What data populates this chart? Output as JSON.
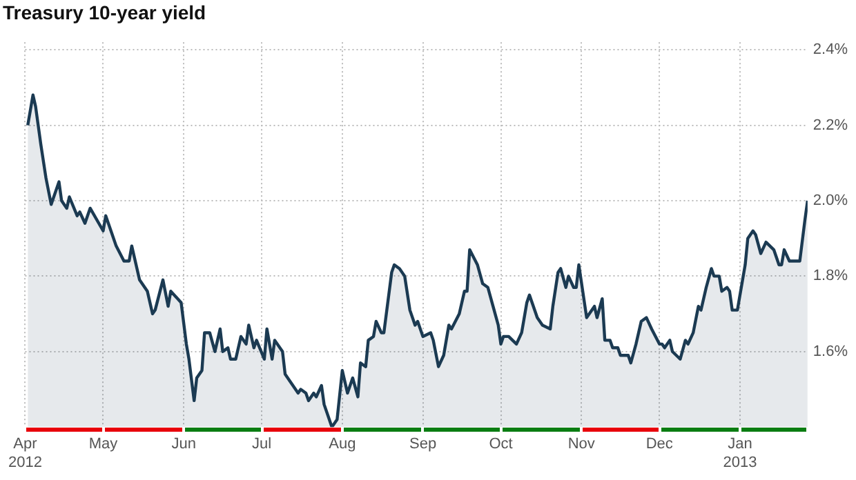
{
  "chart_data": {
    "type": "area",
    "title": "Treasury 10-year yield",
    "x": [
      "2012-04-02",
      "2012-04-04",
      "2012-04-05",
      "2012-04-07",
      "2012-04-09",
      "2012-04-11",
      "2012-04-14",
      "2012-04-15",
      "2012-04-17",
      "2012-04-18",
      "2012-04-21",
      "2012-04-22",
      "2012-04-24",
      "2012-04-26",
      "2012-05-01",
      "2012-05-02",
      "2012-05-04",
      "2012-05-06",
      "2012-05-09",
      "2012-05-11",
      "2012-05-12",
      "2012-05-15",
      "2012-05-18",
      "2012-05-20",
      "2012-05-21",
      "2012-05-24",
      "2012-05-26",
      "2012-05-27",
      "2012-05-31",
      "2012-06-02",
      "2012-06-03",
      "2012-06-05",
      "2012-06-06",
      "2012-06-08",
      "2012-06-09",
      "2012-06-11",
      "2012-06-13",
      "2012-06-15",
      "2012-06-16",
      "2012-06-18",
      "2012-06-19",
      "2012-06-21",
      "2012-06-23",
      "2012-06-25",
      "2012-06-26",
      "2012-06-28",
      "2012-06-29",
      "2012-07-02",
      "2012-07-03",
      "2012-07-05",
      "2012-07-06",
      "2012-07-09",
      "2012-07-10",
      "2012-07-13",
      "2012-07-15",
      "2012-07-16",
      "2012-07-18",
      "2012-07-19",
      "2012-07-21",
      "2012-07-22",
      "2012-07-24",
      "2012-07-25",
      "2012-07-28",
      "2012-07-30",
      "2012-08-01",
      "2012-08-03",
      "2012-08-05",
      "2012-08-07",
      "2012-08-08",
      "2012-08-10",
      "2012-08-11",
      "2012-08-13",
      "2012-08-14",
      "2012-08-16",
      "2012-08-17",
      "2012-08-20",
      "2012-08-21",
      "2012-08-23",
      "2012-08-25",
      "2012-08-27",
      "2012-08-29",
      "2012-08-30",
      "2012-09-01",
      "2012-09-04",
      "2012-09-05",
      "2012-09-07",
      "2012-09-09",
      "2012-09-11",
      "2012-09-12",
      "2012-09-15",
      "2012-09-17",
      "2012-09-18",
      "2012-09-19",
      "2012-09-22",
      "2012-09-24",
      "2012-09-26",
      "2012-09-28",
      "2012-09-30",
      "2012-10-01",
      "2012-10-02",
      "2012-10-04",
      "2012-10-07",
      "2012-10-09",
      "2012-10-11",
      "2012-10-12",
      "2012-10-15",
      "2012-10-17",
      "2012-10-20",
      "2012-10-21",
      "2012-10-23",
      "2012-10-24",
      "2012-10-26",
      "2012-10-27",
      "2012-10-29",
      "2012-10-30",
      "2012-10-31",
      "2012-11-03",
      "2012-11-06",
      "2012-11-07",
      "2012-11-09",
      "2012-11-10",
      "2012-11-12",
      "2012-11-13",
      "2012-11-15",
      "2012-11-16",
      "2012-11-19",
      "2012-11-20",
      "2012-11-22",
      "2012-11-24",
      "2012-11-26",
      "2012-11-28",
      "2012-12-01",
      "2012-12-02",
      "2012-12-03",
      "2012-12-05",
      "2012-12-06",
      "2012-12-09",
      "2012-12-11",
      "2012-12-12",
      "2012-12-14",
      "2012-12-16",
      "2012-12-17",
      "2012-12-19",
      "2012-12-21",
      "2012-12-22",
      "2012-12-24",
      "2012-12-25",
      "2012-12-27",
      "2012-12-28",
      "2012-12-29",
      "2012-12-31",
      "2013-01-01",
      "2013-01-03",
      "2013-01-04",
      "2013-01-06",
      "2013-01-07",
      "2013-01-09",
      "2013-01-11",
      "2013-01-14",
      "2013-01-16",
      "2013-01-17",
      "2013-01-18",
      "2013-01-20",
      "2013-01-22",
      "2013-01-24",
      "2013-01-26",
      "2013-01-27"
    ],
    "series": [
      {
        "color": "#1b3a52",
        "values": [
          2.2,
          2.28,
          2.25,
          2.15,
          2.06,
          1.99,
          2.05,
          2.0,
          1.98,
          2.01,
          1.96,
          1.97,
          1.94,
          1.98,
          1.92,
          1.96,
          1.92,
          1.88,
          1.84,
          1.84,
          1.88,
          1.79,
          1.76,
          1.7,
          1.71,
          1.79,
          1.72,
          1.76,
          1.73,
          1.62,
          1.58,
          1.47,
          1.53,
          1.55,
          1.65,
          1.65,
          1.6,
          1.66,
          1.6,
          1.61,
          1.58,
          1.58,
          1.64,
          1.62,
          1.67,
          1.61,
          1.63,
          1.58,
          1.66,
          1.58,
          1.63,
          1.6,
          1.54,
          1.51,
          1.49,
          1.5,
          1.49,
          1.47,
          1.49,
          1.48,
          1.51,
          1.46,
          1.4,
          1.42,
          1.55,
          1.49,
          1.53,
          1.48,
          1.57,
          1.56,
          1.63,
          1.64,
          1.68,
          1.65,
          1.65,
          1.81,
          1.83,
          1.82,
          1.8,
          1.71,
          1.67,
          1.68,
          1.64,
          1.65,
          1.63,
          1.56,
          1.59,
          1.67,
          1.66,
          1.7,
          1.76,
          1.76,
          1.87,
          1.83,
          1.78,
          1.77,
          1.72,
          1.67,
          1.62,
          1.64,
          1.64,
          1.62,
          1.65,
          1.73,
          1.75,
          1.69,
          1.67,
          1.66,
          1.72,
          1.81,
          1.82,
          1.77,
          1.8,
          1.77,
          1.77,
          1.83,
          1.69,
          1.72,
          1.69,
          1.74,
          1.63,
          1.63,
          1.61,
          1.61,
          1.59,
          1.59,
          1.57,
          1.62,
          1.68,
          1.69,
          1.66,
          1.62,
          1.62,
          1.61,
          1.63,
          1.6,
          1.58,
          1.63,
          1.62,
          1.65,
          1.72,
          1.71,
          1.77,
          1.82,
          1.8,
          1.8,
          1.76,
          1.77,
          1.76,
          1.71,
          1.71,
          1.75,
          1.83,
          1.9,
          1.92,
          1.91,
          1.86,
          1.89,
          1.87,
          1.83,
          1.83,
          1.87,
          1.84,
          1.84,
          1.84,
          1.95,
          2.0
        ]
      }
    ],
    "xlim": [
      "2012-04-01",
      "2013-01-27"
    ],
    "xticks": [
      {
        "value": "2012-04-01",
        "label": "Apr\n2012"
      },
      {
        "value": "2012-05-01",
        "label": "May"
      },
      {
        "value": "2012-06-01",
        "label": "Jun"
      },
      {
        "value": "2012-07-01",
        "label": "Jul"
      },
      {
        "value": "2012-08-01",
        "label": "Aug"
      },
      {
        "value": "2012-09-01",
        "label": "Sep"
      },
      {
        "value": "2012-10-01",
        "label": "Oct"
      },
      {
        "value": "2012-11-01",
        "label": "Nov"
      },
      {
        "value": "2012-12-01",
        "label": "Dec"
      },
      {
        "value": "2013-01-01",
        "label": "Jan\n2013"
      }
    ],
    "ylim": [
      1.4,
      2.42
    ],
    "yticks": [
      {
        "value": 1.6,
        "label": "1.6%"
      },
      {
        "value": 1.8,
        "label": "1.8%"
      },
      {
        "value": 2.0,
        "label": "2.0%"
      },
      {
        "value": 2.2,
        "label": "2.2%"
      },
      {
        "value": 2.4,
        "label": "2.4%"
      }
    ],
    "grid": true,
    "line_style": "solid",
    "marker": "none",
    "legend": false
  }
}
